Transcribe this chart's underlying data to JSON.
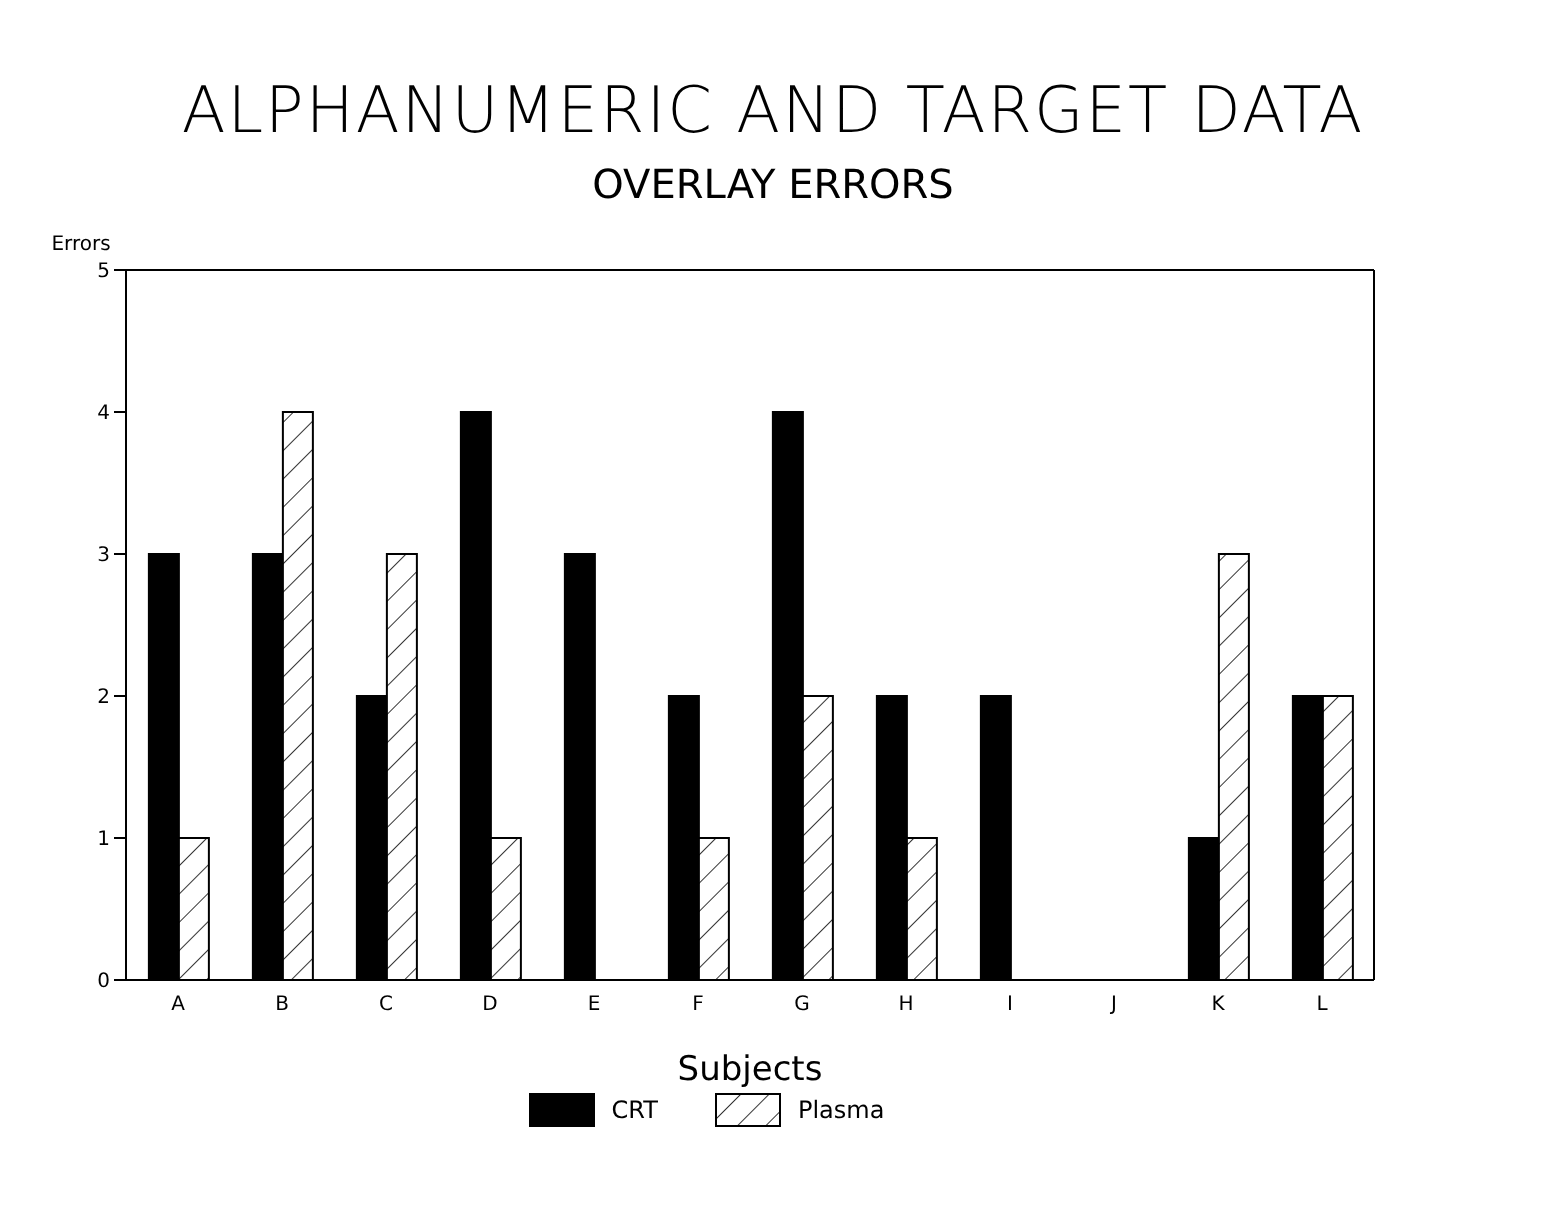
{
  "chart_data": {
    "type": "bar",
    "title": "ALPHANUMERIC AND TARGET DATA",
    "subtitle": "OVERLAY ERRORS",
    "xlabel": "Subjects",
    "ylabel": "Errors",
    "categories": [
      "A",
      "B",
      "C",
      "D",
      "E",
      "F",
      "G",
      "H",
      "I",
      "J",
      "K",
      "L"
    ],
    "series": [
      {
        "name": "CRT",
        "color": "#000000",
        "values": [
          3,
          3,
          2,
          4,
          3,
          2,
          4,
          2,
          2,
          0,
          1,
          2
        ]
      },
      {
        "name": "Plasma",
        "color": "#ffffff",
        "values": [
          1,
          4,
          3,
          1,
          0,
          1,
          2,
          1,
          0,
          0,
          3,
          2
        ]
      }
    ],
    "ylim": [
      0,
      5
    ],
    "yticks": [
      0,
      1,
      2,
      3,
      4,
      5
    ],
    "legend": "bottom"
  }
}
